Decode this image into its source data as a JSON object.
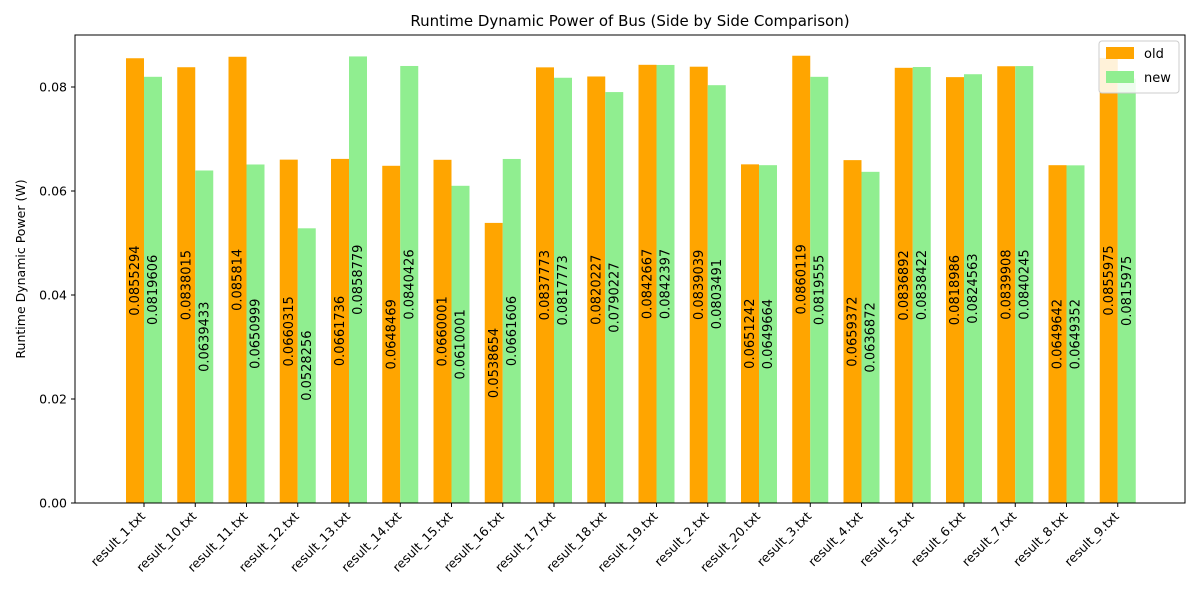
{
  "chart_data": {
    "type": "bar",
    "title": "Runtime Dynamic Power of Bus (Side by Side Comparison)",
    "xlabel": "",
    "ylabel": "Runtime Dynamic Power (W)",
    "ylim": [
      0,
      0.09
    ],
    "yticks": [
      0.0,
      0.02,
      0.04,
      0.06,
      0.08
    ],
    "ytick_labels": [
      "0.00",
      "0.02",
      "0.04",
      "0.06",
      "0.08"
    ],
    "grid": false,
    "legend_position": "top-right",
    "categories": [
      "result_1.txt",
      "result_10.txt",
      "result_11.txt",
      "result_12.txt",
      "result_13.txt",
      "result_14.txt",
      "result_15.txt",
      "result_16.txt",
      "result_17.txt",
      "result_18.txt",
      "result_19.txt",
      "result_2.txt",
      "result_20.txt",
      "result_3.txt",
      "result_4.txt",
      "result_5.txt",
      "result_6.txt",
      "result_7.txt",
      "result_8.txt",
      "result_9.txt"
    ],
    "series": [
      {
        "name": "old",
        "color": "#FFA500",
        "values": [
          0.0855294,
          0.0838015,
          0.085814,
          0.0660315,
          0.0661736,
          0.0648469,
          0.0660001,
          0.0538654,
          0.0837773,
          0.0820227,
          0.0842667,
          0.0839039,
          0.0651242,
          0.0860119,
          0.0659372,
          0.0836892,
          0.0818986,
          0.0839908,
          0.0649642,
          0.0855975
        ],
        "labels": [
          "0.0855294",
          "0.0838015",
          "0.085814",
          "0.0660315",
          "0.0661736",
          "0.0648469",
          "0.0660001",
          "0.0538654",
          "0.0837773",
          "0.0820227",
          "0.0842667",
          "0.0839039",
          "0.0651242",
          "0.0860119",
          "0.0659372",
          "0.0836892",
          "0.0818986",
          "0.0839908",
          "0.0649642",
          "0.0855975"
        ]
      },
      {
        "name": "new",
        "color": "#90EE90",
        "values": [
          0.0819606,
          0.0639433,
          0.0650999,
          0.0528256,
          0.0858779,
          0.0840426,
          0.0610001,
          0.0661606,
          0.0817773,
          0.0790227,
          0.0842397,
          0.0803491,
          0.0649664,
          0.0819555,
          0.0636872,
          0.0838422,
          0.0824563,
          0.0840245,
          0.0649352,
          0.0815975
        ],
        "labels": [
          "0.0819606",
          "0.0639433",
          "0.0650999",
          "0.0528256",
          "0.0858779",
          "0.0840426",
          "0.0610001",
          "0.0661606",
          "0.0817773",
          "0.0790227",
          "0.0842397",
          "0.0803491",
          "0.0649664",
          "0.0819555",
          "0.0636872",
          "0.0838422",
          "0.0824563",
          "0.0840245",
          "0.0649352",
          "0.0815975"
        ]
      }
    ]
  }
}
